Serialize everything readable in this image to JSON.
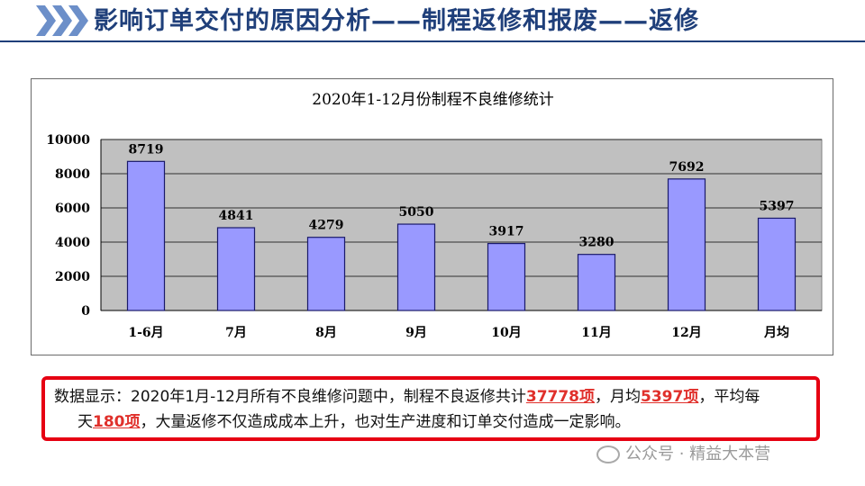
{
  "header": {
    "title": "影响订单交付的原因分析——制程返修和报废——返修",
    "accent": "#1f3f7a",
    "chevron_color": "#6c8fc9"
  },
  "chart_data": {
    "type": "bar",
    "title": "2020年1-12月份制程不良维修统计",
    "categories": [
      "1-6月",
      "7月",
      "8月",
      "9月",
      "10月",
      "11月",
      "12月",
      "月均"
    ],
    "values": [
      8719,
      4841,
      4279,
      5050,
      3917,
      3280,
      7692,
      5397
    ],
    "ylim": [
      0,
      10000
    ],
    "yticks": [
      0,
      2000,
      4000,
      6000,
      8000,
      10000
    ],
    "xlabel": "",
    "ylabel": "",
    "grid": true,
    "plot_background": "#c0c0c0",
    "bar_color": "#9999ff"
  },
  "note": {
    "prefix": "数据显示：2020年1月-12月所有不良维修问题中，制程不良返修共计",
    "total": "37778项",
    "mid1": "，月均",
    "avg": "5397项",
    "mid2": "，平均每",
    "mid3": "天",
    "daily": "180项",
    "suffix": "，大量返修不仅造成成本上升，也对生产进度和订单交付造成一定影响。"
  },
  "watermark": "公众号 · 精益大本营"
}
